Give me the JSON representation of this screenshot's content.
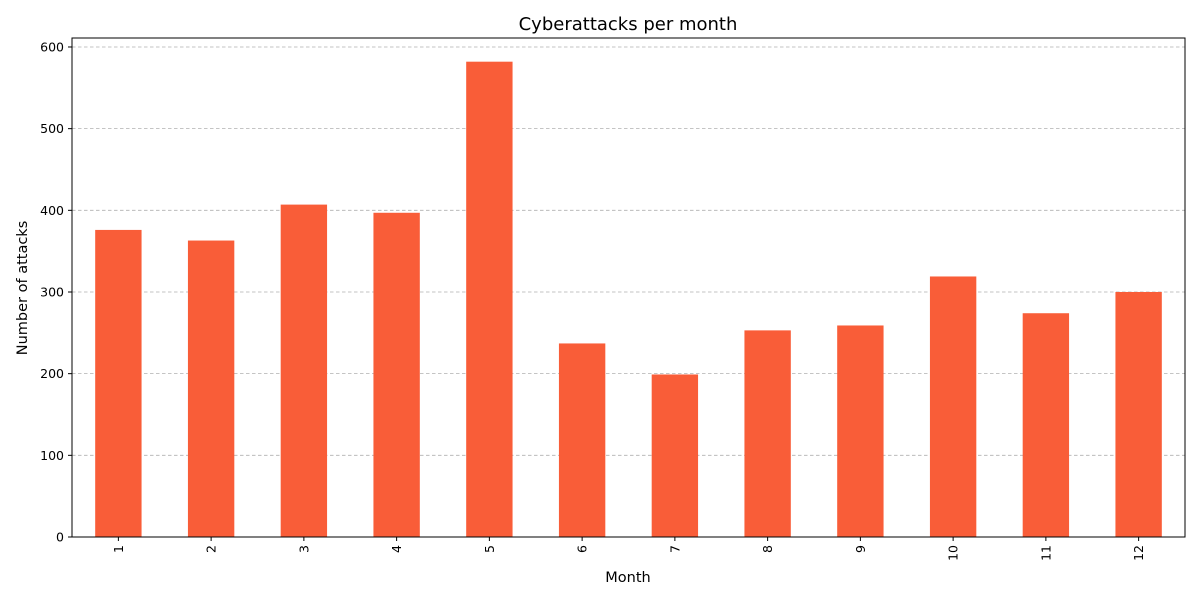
{
  "chart_data": {
    "type": "bar",
    "title": "Cyberattacks per month",
    "xlabel": "Month",
    "ylabel": "Number of attacks",
    "categories": [
      "1",
      "2",
      "3",
      "4",
      "5",
      "6",
      "7",
      "8",
      "9",
      "10",
      "11",
      "12"
    ],
    "values": [
      376,
      363,
      407,
      397,
      582,
      237,
      199,
      253,
      259,
      319,
      274,
      300
    ],
    "ylim": [
      0,
      611
    ],
    "yticks": [
      0,
      100,
      200,
      300,
      400,
      500,
      600
    ],
    "bar_color": "#f95d38",
    "grid": "horizontal dashed",
    "x_tick_rotation": "vertical"
  }
}
